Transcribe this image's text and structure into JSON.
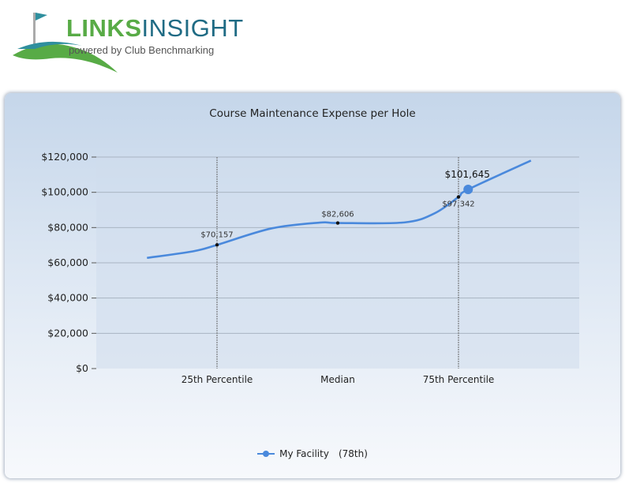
{
  "logo": {
    "title_part1": "LINKS",
    "title_part2": "INSIGHT",
    "subtitle": "powered by Club Benchmarking"
  },
  "chart_data": {
    "type": "line",
    "title": "Course Maintenance Expense per Hole",
    "xlabel": "",
    "ylabel": "",
    "ylim": [
      0,
      120000
    ],
    "yticks": [
      "$0",
      "$20,000",
      "$40,000",
      "$60,000",
      "$80,000",
      "$100,000",
      "$120,000"
    ],
    "ytick_values": [
      0,
      20000,
      40000,
      60000,
      80000,
      100000,
      120000
    ],
    "categories": [
      "25th Percentile",
      "Median",
      "75th Percentile"
    ],
    "series": [
      {
        "name": "My Facility",
        "rank_label": "(78th)",
        "color": "#4a89dc",
        "points": [
          {
            "x": 0,
            "y": 70157,
            "label": "$70,157"
          },
          {
            "x": 1,
            "y": 82606,
            "label": "$82,606"
          },
          {
            "x": 2,
            "y": 97342,
            "label": "$97,342"
          }
        ],
        "highlight": {
          "x": 2.08,
          "y": 101645,
          "label": "$101,645"
        }
      }
    ],
    "curve": [
      {
        "x": -0.58,
        "y": 62800
      },
      {
        "x": -0.2,
        "y": 66500
      },
      {
        "x": 0,
        "y": 70157
      },
      {
        "x": 0.45,
        "y": 79500
      },
      {
        "x": 0.85,
        "y": 82800
      },
      {
        "x": 1,
        "y": 82606
      },
      {
        "x": 1.55,
        "y": 82900
      },
      {
        "x": 1.8,
        "y": 88000
      },
      {
        "x": 2,
        "y": 97342
      },
      {
        "x": 2.08,
        "y": 101645
      },
      {
        "x": 2.6,
        "y": 118000
      }
    ],
    "grid": true,
    "legend": "bottom-center"
  }
}
